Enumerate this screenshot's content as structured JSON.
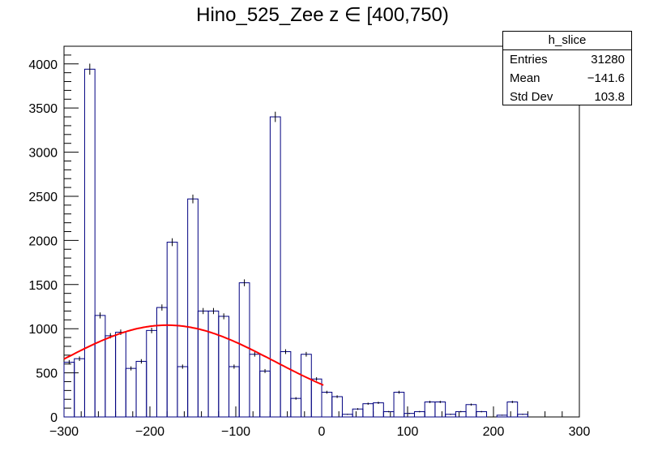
{
  "chart_data": {
    "type": "bar",
    "title": "Hino_525_Zee z  ∈ [400,750)",
    "xlabel": "",
    "ylabel": "",
    "xlim": [
      -300,
      300
    ],
    "ylim": [
      0,
      4200
    ],
    "grid": false,
    "bin_width": 12,
    "x_ticks": [
      -300,
      -200,
      -100,
      0,
      100,
      200,
      300
    ],
    "x_tick_labels": [
      "−300",
      "−200",
      "−100",
      "0",
      "100",
      "200",
      "300"
    ],
    "y_ticks": [
      0,
      500,
      1000,
      1500,
      2000,
      2500,
      3000,
      3500,
      4000
    ],
    "y_tick_labels": [
      "0",
      "500",
      "1000",
      "1500",
      "2000",
      "2500",
      "3000",
      "3500",
      "4000"
    ],
    "bin_edges": [
      -300,
      -288,
      -276,
      -264,
      -252,
      -240,
      -228,
      -216,
      -204,
      -192,
      -180,
      -168,
      -156,
      -144,
      -132,
      -120,
      -108,
      -96,
      -84,
      -72,
      -60,
      -48,
      -36,
      -24,
      -12,
      0,
      12,
      24,
      36,
      48,
      60,
      72,
      84,
      96,
      108,
      120,
      132,
      144,
      156,
      168,
      180,
      192,
      204,
      216,
      228,
      240,
      252,
      264,
      276,
      288,
      300
    ],
    "values": [
      620,
      660,
      3940,
      1150,
      920,
      960,
      550,
      630,
      980,
      1240,
      1980,
      570,
      2470,
      1200,
      1200,
      1140,
      570,
      1520,
      710,
      520,
      3400,
      740,
      210,
      710,
      430,
      280,
      230,
      30,
      90,
      150,
      160,
      60,
      280,
      40,
      60,
      170,
      170,
      30,
      60,
      140,
      60,
      0,
      20,
      170,
      30,
      0,
      0,
      0,
      0,
      0
    ],
    "fit": {
      "name": "gaus",
      "color": "#ff0000",
      "amplitude": 1040,
      "mean": -180,
      "sigma": 125,
      "x_range": [
        -300,
        2
      ]
    },
    "legend_position": "top-right",
    "stats_box": {
      "name": "h_slice",
      "entries_label": "Entries",
      "entries": "31280",
      "mean_label": "Mean",
      "mean": "−141.6",
      "stddev_label": "Std Dev",
      "stddev": "103.8"
    },
    "colors": {
      "histogram": "#000080",
      "fit": "#ff0000",
      "axis": "#000000"
    }
  }
}
